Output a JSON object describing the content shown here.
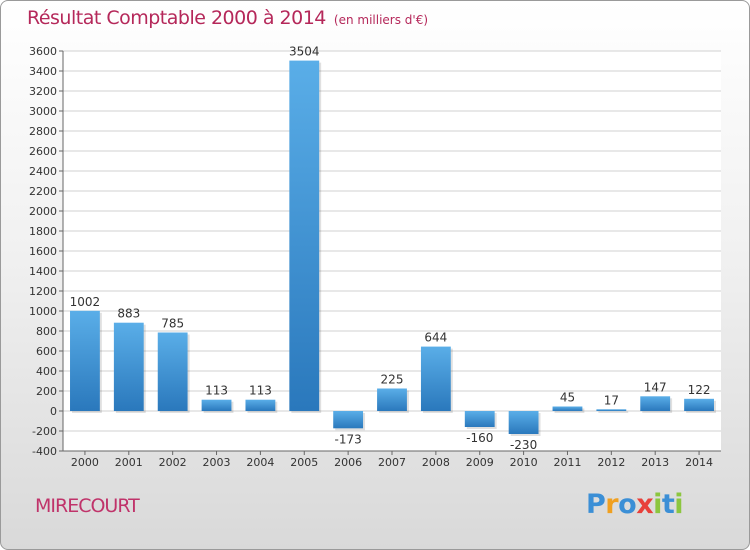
{
  "title": "Résultat Comptable 2000 à 2014",
  "subtitle": "(en milliers d'€)",
  "commune": "MIRECOURT",
  "brand": {
    "letters": [
      "P",
      "r",
      "o",
      "x",
      "i",
      "t",
      "i"
    ],
    "colors": [
      "#3b8fd6",
      "#f0a020",
      "#3b8fd6",
      "#e8403a",
      "#8cc63f",
      "#3b8fd6",
      "#8cc63f"
    ]
  },
  "colors": {
    "bar_light": "#5aaee8",
    "bar_dark": "#2a78bc",
    "grid": "#d2d2d2",
    "title": "#b5285a"
  },
  "chart_data": {
    "type": "bar",
    "title": "Résultat Comptable 2000 à 2014",
    "ylabel": "en milliers d'€",
    "categories": [
      "2000",
      "2001",
      "2002",
      "2003",
      "2004",
      "2005",
      "2006",
      "2007",
      "2008",
      "2009",
      "2010",
      "2011",
      "2012",
      "2013",
      "2014"
    ],
    "values": [
      1002,
      883,
      785,
      113,
      113,
      3504,
      -173,
      225,
      644,
      -160,
      -230,
      45,
      17,
      147,
      122
    ],
    "labels": [
      "1002",
      "883",
      "785",
      "113",
      "113",
      "3504",
      "-173",
      "225",
      "644",
      "-160",
      "-230",
      "45",
      "17",
      "147",
      "122"
    ],
    "yticks": [
      -400,
      -200,
      0,
      200,
      400,
      600,
      800,
      1000,
      1200,
      1400,
      1600,
      1800,
      2000,
      2200,
      2400,
      2600,
      2800,
      3000,
      3200,
      3400,
      3600
    ],
    "ylim": [
      -400,
      3600
    ],
    "grid": true
  }
}
